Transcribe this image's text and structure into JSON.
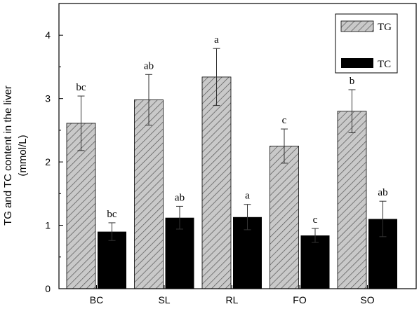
{
  "chart_data": {
    "type": "bar",
    "title": "",
    "xlabel": "",
    "ylabel_line1": "TG and TC content in the liver",
    "ylabel_line2": "(mmol/L)",
    "categories": [
      "BC",
      "SL",
      "RL",
      "FO",
      "SO"
    ],
    "ylim": [
      0,
      4.5
    ],
    "yticks": [
      "0",
      "1",
      "2",
      "3",
      "4"
    ],
    "yticks_values": [
      0,
      1,
      2,
      3,
      4
    ],
    "legend_position": "top-right",
    "series": [
      {
        "name": "TG",
        "fill": "hatched-gray",
        "color": "#c8c8c8",
        "values": [
          2.61,
          2.98,
          3.34,
          2.25,
          2.8
        ],
        "errors": [
          0.43,
          0.4,
          0.45,
          0.27,
          0.34
        ],
        "significance": [
          "bc",
          "ab",
          "a",
          "c",
          "b"
        ]
      },
      {
        "name": "TC",
        "fill": "solid-black",
        "color": "#000000",
        "values": [
          0.9,
          1.12,
          1.13,
          0.84,
          1.1
        ],
        "errors": [
          0.14,
          0.18,
          0.2,
          0.11,
          0.28
        ],
        "significance": [
          "bc",
          "ab",
          "a",
          "c",
          "ab"
        ]
      }
    ]
  }
}
